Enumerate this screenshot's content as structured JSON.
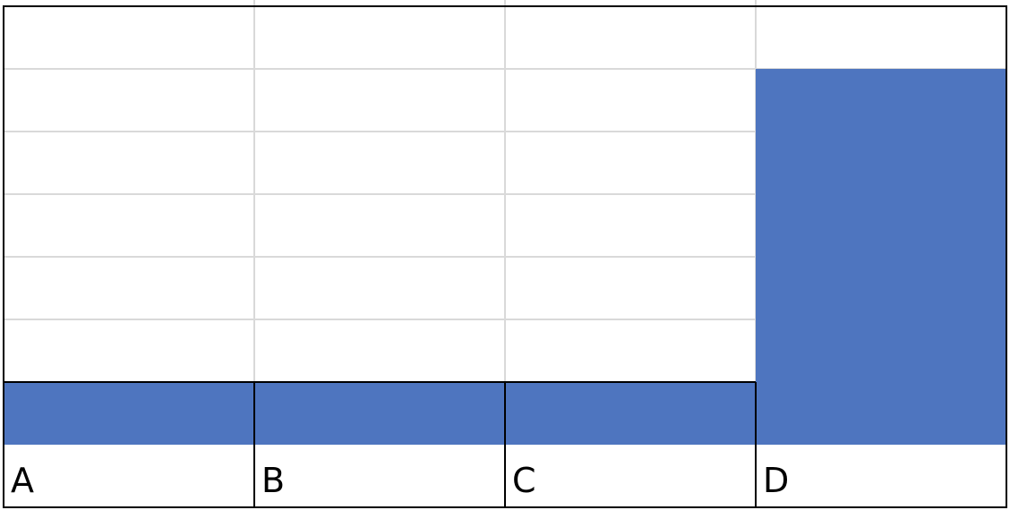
{
  "chart_data": {
    "type": "bar",
    "categories": [
      "A",
      "B",
      "C",
      "D"
    ],
    "values": [
      1,
      1,
      1,
      6
    ],
    "ylim": [
      0,
      7
    ],
    "grid": true,
    "title": "",
    "xlabel": "",
    "ylabel": ""
  },
  "colors": {
    "bar": "#4e75bf",
    "grid": "#d9d9d9",
    "outline": "#000000",
    "background": "#ffffff"
  }
}
